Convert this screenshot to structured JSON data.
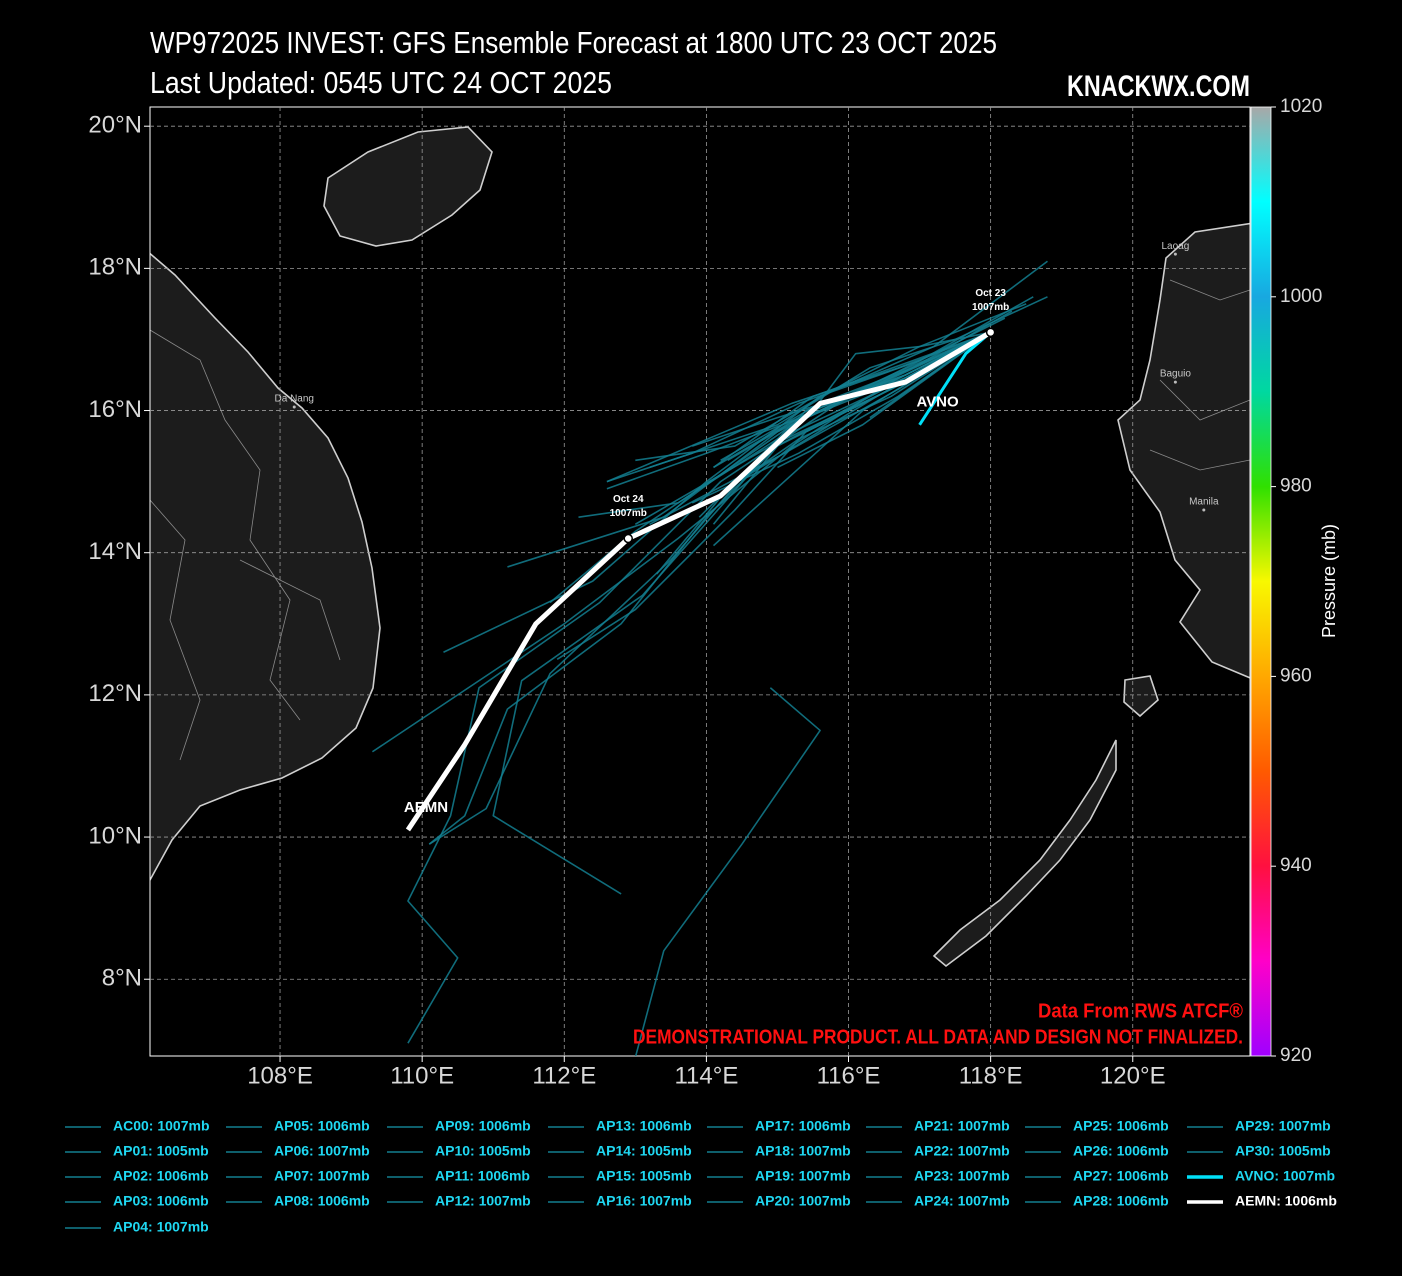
{
  "chart_data": {
    "type": "track-map",
    "title": "WP972025 INVEST: GFS Ensemble Forecast at 1800 UTC 23 OCT 2025",
    "subtitle": "Last Updated: 0545 UTC 24 OCT 2025",
    "brand": "KNACKWX.COM",
    "source_note": "Data From RWS ATCF®",
    "disclaimer": "DEMONSTRATIONAL PRODUCT. ALL DATA AND DESIGN NOT FINALIZED.",
    "xlim": [
      106.17,
      121.65
    ],
    "ylim": [
      6.92,
      20.27
    ],
    "xticks": [
      {
        "value": 108,
        "label": "108°E"
      },
      {
        "value": 110,
        "label": "110°E"
      },
      {
        "value": 112,
        "label": "112°E"
      },
      {
        "value": 114,
        "label": "114°E"
      },
      {
        "value": 116,
        "label": "116°E"
      },
      {
        "value": 118,
        "label": "118°E"
      },
      {
        "value": 120,
        "label": "120°E"
      }
    ],
    "yticks": [
      {
        "value": 8,
        "label": "8°N"
      },
      {
        "value": 10,
        "label": "10°N"
      },
      {
        "value": 12,
        "label": "12°N"
      },
      {
        "value": 14,
        "label": "14°N"
      },
      {
        "value": 16,
        "label": "16°N"
      },
      {
        "value": 18,
        "label": "18°N"
      },
      {
        "value": 20,
        "label": "20°N"
      }
    ],
    "grid": true,
    "cities": [
      {
        "name": "Da Nang",
        "lon": 108.2,
        "lat": 16.05
      },
      {
        "name": "Laoag",
        "lon": 120.6,
        "lat": 18.2
      },
      {
        "name": "Baguio",
        "lon": 120.6,
        "lat": 16.4
      },
      {
        "name": "Manila",
        "lon": 121.0,
        "lat": 14.6
      }
    ],
    "colorbar": {
      "label": "Pressure (mb)",
      "lim": [
        920,
        1020
      ],
      "ticks": [
        920,
        940,
        960,
        980,
        1000,
        1020
      ],
      "colormap": [
        {
          "value": 920,
          "color": "#a000ff"
        },
        {
          "value": 930,
          "color": "#ff00c8"
        },
        {
          "value": 940,
          "color": "#ff1040"
        },
        {
          "value": 950,
          "color": "#ff5a00"
        },
        {
          "value": 960,
          "color": "#ffa800"
        },
        {
          "value": 970,
          "color": "#f8f800"
        },
        {
          "value": 980,
          "color": "#30e000"
        },
        {
          "value": 990,
          "color": "#00d8a0"
        },
        {
          "value": 1000,
          "color": "#18a8e0"
        },
        {
          "value": 1010,
          "color": "#00ffff"
        },
        {
          "value": 1020,
          "color": "#a8a8a8"
        }
      ]
    },
    "markers": [
      {
        "label": "Oct 23",
        "pressure_label": "1007mb",
        "lon": 118.0,
        "lat": 17.1
      },
      {
        "label": "Oct 24",
        "pressure_label": "1007mb",
        "lon": 112.9,
        "lat": 14.2
      }
    ],
    "series": [
      {
        "name": "AC00: 1007mb",
        "color": "#137f90",
        "lon": [
          118.0,
          116.8,
          115.5,
          114.2,
          113.0,
          111.8
        ],
        "lat": [
          17.1,
          16.5,
          16.0,
          15.1,
          14.3,
          13.3
        ]
      },
      {
        "name": "AP01: 1005mb",
        "color": "#137f90",
        "lon": [
          118.6,
          117.0,
          115.3,
          113.8,
          112.6
        ],
        "lat": [
          17.6,
          16.7,
          16.1,
          15.4,
          15.0
        ]
      },
      {
        "name": "AP02: 1006mb",
        "color": "#137f90",
        "lon": [
          118.0,
          116.5,
          115.0,
          113.6,
          112.2
        ],
        "lat": [
          17.1,
          16.3,
          15.6,
          14.7,
          14.5
        ]
      },
      {
        "name": "AP03: 1006mb",
        "color": "#137f90",
        "lon": [
          118.2,
          116.6,
          115.0,
          113.4,
          111.2
        ],
        "lat": [
          17.3,
          16.5,
          15.7,
          14.5,
          13.8
        ]
      },
      {
        "name": "AP04: 1007mb",
        "color": "#137f90",
        "lon": [
          118.8,
          117.2,
          115.6,
          114.0,
          112.4,
          110.3
        ],
        "lat": [
          18.1,
          16.9,
          16.2,
          15.0,
          13.6,
          12.6
        ]
      },
      {
        "name": "AP05: 1006mb",
        "color": "#137f90",
        "lon": [
          118.0,
          116.6,
          115.2,
          113.6,
          112.0,
          109.3
        ],
        "lat": [
          17.1,
          16.4,
          15.5,
          14.2,
          13.0,
          11.2
        ]
      },
      {
        "name": "AP06: 1007mb",
        "color": "#137f90",
        "lon": [
          118.0,
          116.9,
          115.4,
          114.0,
          112.8,
          111.2,
          110.6,
          110.1
        ],
        "lat": [
          17.1,
          16.5,
          15.9,
          14.5,
          13.0,
          11.8,
          10.3,
          9.9
        ]
      },
      {
        "name": "AP07: 1007mb",
        "color": "#137f90",
        "lon": [
          118.0,
          116.4,
          114.6,
          113.1,
          111.4,
          111.0,
          112.8
        ],
        "lat": [
          17.1,
          16.2,
          15.1,
          13.4,
          12.2,
          10.3,
          9.2
        ]
      },
      {
        "name": "AP08: 1006mb",
        "color": "#137f90",
        "lon": [
          118.0,
          116.5,
          114.8,
          113.5,
          111.8,
          110.9,
          110.1
        ],
        "lat": [
          17.1,
          16.3,
          15.4,
          13.9,
          12.3,
          10.4,
          9.9
        ]
      },
      {
        "name": "AP09: 1006mb",
        "color": "#137f90",
        "lon": [
          118.0,
          116.0,
          114.2,
          112.5,
          110.8,
          110.4,
          109.8,
          110.5,
          109.8
        ],
        "lat": [
          17.1,
          16.2,
          15.0,
          13.3,
          12.1,
          10.3,
          9.1,
          8.3,
          7.1
        ]
      },
      {
        "name": "AP10: 1005mb",
        "color": "#137f90",
        "lon": [
          114.9,
          115.6,
          114.5,
          113.4,
          113.0
        ],
        "lat": [
          12.1,
          11.5,
          9.9,
          8.4,
          6.9
        ]
      },
      {
        "name": "AP11: 1006mb",
        "color": "#137f90",
        "lon": [
          118.0,
          116.2,
          114.1
        ],
        "lat": [
          17.1,
          16.0,
          14.1
        ]
      },
      {
        "name": "AP12: 1007mb",
        "color": "#137f90",
        "lon": [
          118.8,
          117.5,
          116.3,
          115.0,
          113.2
        ],
        "lat": [
          17.6,
          17.0,
          16.6,
          15.8,
          15.2
        ]
      },
      {
        "name": "AP13: 1006mb",
        "color": "#137f90",
        "lon": [
          118.0,
          116.7,
          115.2,
          112.6
        ],
        "lat": [
          17.1,
          16.6,
          16.1,
          15.0
        ]
      },
      {
        "name": "AP14: 1005mb",
        "color": "#137f90",
        "lon": [
          118.0,
          116.2,
          115.0
        ],
        "lat": [
          17.1,
          15.8,
          15.2
        ]
      },
      {
        "name": "AP15: 1005mb",
        "color": "#137f90",
        "lon": [
          118.3,
          116.9,
          115.6,
          114.0,
          112.6
        ],
        "lat": [
          17.4,
          16.6,
          16.0,
          15.4,
          14.9
        ]
      },
      {
        "name": "AP16: 1007mb",
        "color": "#137f90",
        "lon": [
          118.0,
          117.0,
          116.1,
          115.5,
          114.3
        ],
        "lat": [
          17.1,
          16.9,
          16.8,
          16.0,
          15.3
        ]
      },
      {
        "name": "AP17: 1006mb",
        "color": "#137f90",
        "lon": [
          118.0,
          116.6,
          115.3,
          114.3,
          113.3
        ],
        "lat": [
          17.1,
          16.2,
          15.6,
          14.9,
          13.7
        ]
      },
      {
        "name": "AP18: 1007mb",
        "color": "#137f90",
        "lon": [
          118.0,
          116.3
        ],
        "lat": [
          17.1,
          15.9
        ]
      },
      {
        "name": "AP19: 1007mb",
        "color": "#137f90",
        "lon": [
          118.5,
          117.0,
          115.8,
          114.4,
          113.0
        ],
        "lat": [
          17.5,
          16.9,
          16.3,
          15.5,
          15.3
        ]
      },
      {
        "name": "AP20: 1007mb",
        "color": "#137f90",
        "lon": [
          118.0,
          116.8,
          115.4,
          114.4,
          113.0,
          111.9
        ],
        "lat": [
          17.1,
          16.4,
          15.7,
          14.6,
          13.2,
          12.5
        ]
      },
      {
        "name": "AP21: 1007mb",
        "color": "#137f90",
        "lon": [
          118.0,
          116.9,
          115.5,
          114.1
        ],
        "lat": [
          17.1,
          16.7,
          16.2,
          15.2
        ]
      },
      {
        "name": "AP22: 1007mb",
        "color": "#137f90",
        "lon": [
          118.0,
          116.7,
          115.1,
          113.2
        ],
        "lat": [
          17.1,
          16.3,
          15.4,
          14.4
        ]
      },
      {
        "name": "AP23: 1007mb",
        "color": "#137f90",
        "lon": [
          118.0,
          116.6,
          115.0,
          113.8
        ],
        "lat": [
          17.1,
          16.4,
          15.9,
          15.5
        ]
      },
      {
        "name": "AP24: 1007mb",
        "color": "#137f90",
        "lon": [
          118.0,
          116.4,
          115.0,
          114.1
        ],
        "lat": [
          17.1,
          16.2,
          15.5,
          14.4
        ]
      },
      {
        "name": "AP25: 1006mb",
        "color": "#137f90",
        "lon": [
          118.0,
          116.6,
          115.3,
          114.1
        ],
        "lat": [
          17.1,
          16.5,
          15.9,
          15.2
        ]
      },
      {
        "name": "AP26: 1006mb",
        "color": "#137f90",
        "lon": [
          118.0,
          116.9,
          115.6,
          114.2
        ],
        "lat": [
          17.1,
          16.6,
          16.1,
          15.3
        ]
      },
      {
        "name": "AP27: 1006mb",
        "color": "#137f90",
        "lon": [
          118.0,
          116.5,
          115.2,
          113.9
        ],
        "lat": [
          17.1,
          16.4,
          15.8,
          14.5
        ]
      },
      {
        "name": "AP28: 1006mb",
        "color": "#137f90",
        "lon": [
          118.0,
          116.8,
          115.4,
          114.5
        ],
        "lat": [
          17.1,
          16.5,
          16.0,
          15.0
        ]
      },
      {
        "name": "AP29: 1007mb",
        "color": "#137f90",
        "lon": [
          118.0,
          116.6,
          114.9,
          113.0
        ],
        "lat": [
          17.1,
          16.3,
          15.5,
          14.4
        ]
      },
      {
        "name": "AP30: 1005mb",
        "color": "#137f90",
        "lon": [
          118.0,
          116.7,
          115.3,
          113.8
        ],
        "lat": [
          17.1,
          16.2,
          15.4,
          14.7
        ]
      },
      {
        "name": "AVNO: 1007mb",
        "label": "AVNO",
        "color": "#00e0f8",
        "lon": [
          118.0,
          117.65,
          117.0
        ],
        "lat": [
          17.1,
          16.8,
          15.8
        ]
      },
      {
        "name": "AEMN: 1006mb",
        "label": "AEMN",
        "color": "#ffffff",
        "lon": [
          118.0,
          116.8,
          115.6,
          114.2,
          112.9,
          111.6,
          110.6,
          109.8
        ],
        "lat": [
          17.1,
          16.4,
          16.1,
          14.8,
          14.2,
          13.0,
          11.3,
          10.1
        ]
      }
    ]
  }
}
